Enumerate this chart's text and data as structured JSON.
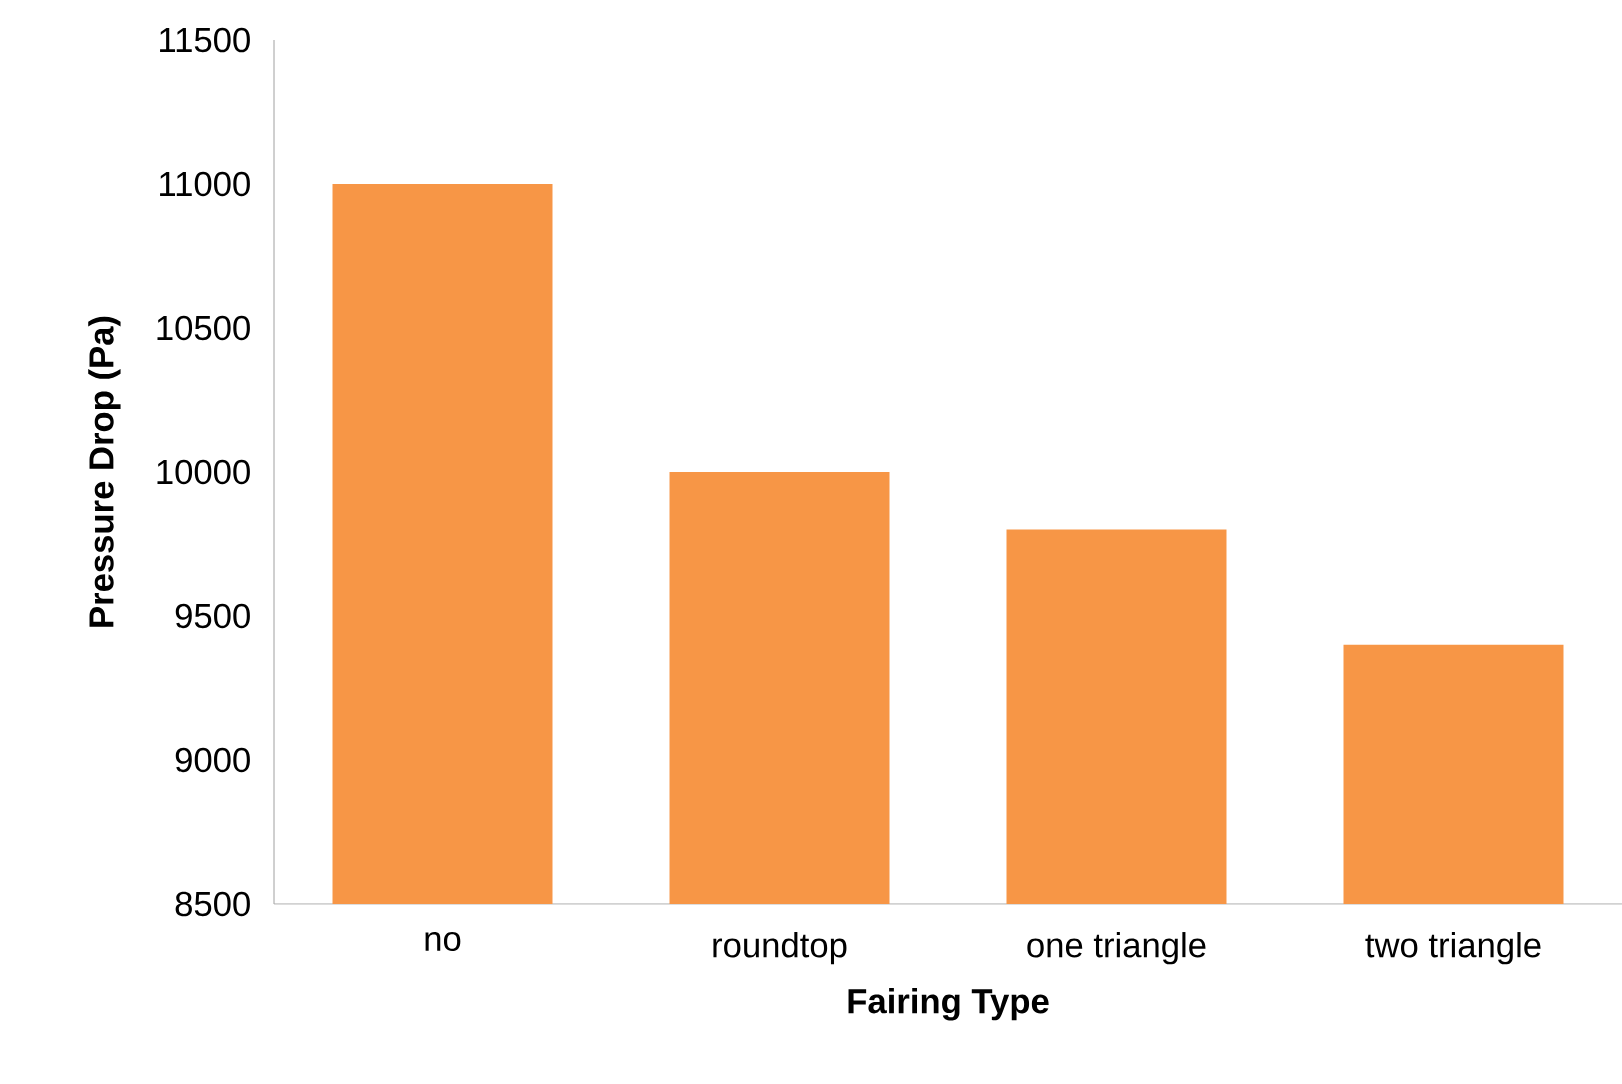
{
  "chart_data": {
    "type": "bar",
    "xlabel": "Fairing Type",
    "ylabel": "Pressure Drop (Pa)",
    "categories": [
      "no",
      "roundtop",
      "one triangle",
      "two triangle"
    ],
    "values": [
      11000,
      10000,
      9800,
      9400
    ],
    "color": "#f79646",
    "ylim": [
      8500,
      11500
    ],
    "yticks": [
      8500,
      9000,
      9500,
      10000,
      10500,
      11000,
      11500
    ],
    "grid": false
  }
}
